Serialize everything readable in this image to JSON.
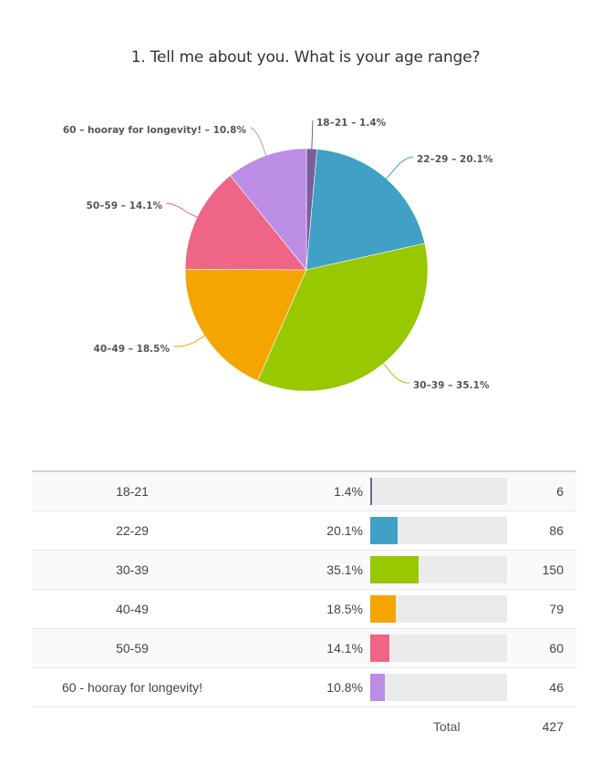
{
  "title": "1. Tell me about you. What is your age range?",
  "chart_data": {
    "type": "pie",
    "title": "1. Tell me about you. What is your age range?",
    "categories": [
      "18-21",
      "22-29",
      "30-39",
      "40-49",
      "50-59",
      "60 - hooray for longevity!"
    ],
    "values": [
      1.4,
      20.1,
      35.1,
      18.5,
      14.1,
      10.8
    ],
    "counts": [
      6,
      86,
      150,
      79,
      60,
      46
    ],
    "total": 427,
    "colors": [
      "#7b5e9b",
      "#40a0c6",
      "#97c800",
      "#f5a500",
      "#ee6585",
      "#bb8de5"
    ],
    "labels": [
      "18–21 – 1.4%",
      "22–29 – 20.1%",
      "30–39 – 35.1%",
      "40–49 – 18.5%",
      "50–59 – 14.1%",
      "60 – hooray for longevity! – 10.8%"
    ],
    "legend_position": "none"
  },
  "table": {
    "rows": [
      {
        "label": "18-21",
        "percent": "1.4%",
        "count": "6"
      },
      {
        "label": "22-29",
        "percent": "20.1%",
        "count": "86"
      },
      {
        "label": "30-39",
        "percent": "35.1%",
        "count": "150"
      },
      {
        "label": "40-49",
        "percent": "18.5%",
        "count": "79"
      },
      {
        "label": "50-59",
        "percent": "14.1%",
        "count": "60"
      },
      {
        "label": "60 - hooray for longevity!",
        "percent": "10.8%",
        "count": "46"
      }
    ],
    "total_label": "Total",
    "total_value": "427"
  }
}
